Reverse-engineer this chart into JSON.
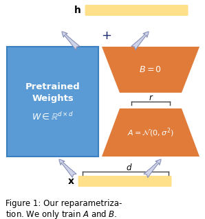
{
  "bg_color": "#ffffff",
  "blue_color": "#5b9bd5",
  "orange_color": "#e07b39",
  "yellow_color": "#ffe08a",
  "arrow_fill": "#d0d4e8",
  "arrow_edge": "#8890b8",
  "text_white": "#ffffff",
  "text_dark": "#1a2a6e",
  "label_h": "h",
  "label_x": "x",
  "label_r": "r",
  "label_d": "d",
  "label_B": "$B = 0$",
  "label_A": "$A = \\mathcal{N}(0,\\sigma^2)$",
  "label_W_line1": "Pretrained",
  "label_W_line2": "Weights",
  "label_W_line3": "$W \\in \\mathbb{R}^{d\\times d}$",
  "caption_line1": "Figure 1: Our reparametriza-",
  "caption_line2": "tion. We only train $A$ and $B$.",
  "caption_fontsize": 8.5
}
